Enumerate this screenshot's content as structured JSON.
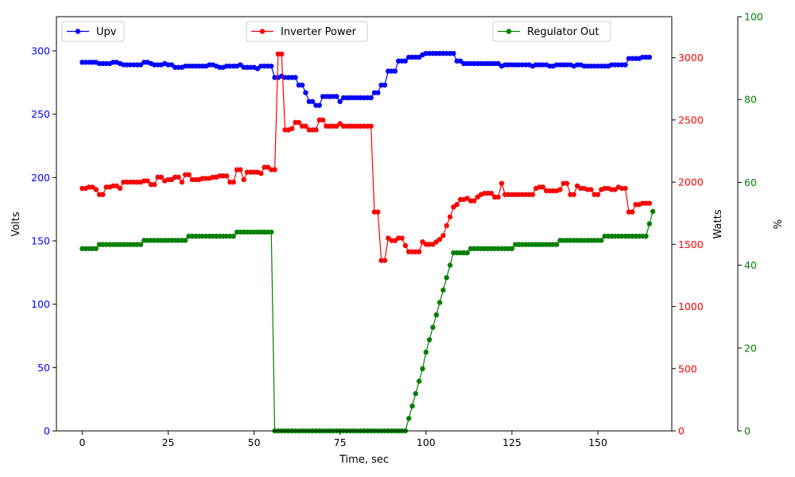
{
  "chart_data": {
    "type": "line",
    "xlabel": "Time, sec",
    "xlim": [
      -7.5,
      171.5
    ],
    "xticks": [
      0,
      25,
      50,
      75,
      100,
      125,
      150
    ],
    "axes": {
      "left": {
        "label": "Volts",
        "color": "#0000ff",
        "ylim": [
          0,
          327
        ],
        "ticks": [
          0,
          50,
          100,
          150,
          200,
          250,
          300
        ]
      },
      "right1": {
        "label": "Watts",
        "color": "#ff0000",
        "ylim": [
          0,
          3330
        ],
        "ticks": [
          0,
          500,
          1000,
          1500,
          2000,
          2500,
          3000
        ]
      },
      "right2": {
        "label": "%",
        "color": "#008000",
        "ylim": [
          0,
          100
        ],
        "ticks": [
          0,
          20,
          40,
          60,
          80,
          100
        ]
      }
    },
    "x_start": 0,
    "x_step": 1,
    "series": [
      {
        "name": "Upv",
        "axis": "left",
        "color": "#0000ff",
        "values": [
          291,
          291,
          291,
          291,
          291,
          290,
          290,
          290,
          290,
          291,
          291,
          290,
          289,
          289,
          289,
          289,
          289,
          289,
          291,
          291,
          290,
          289,
          289,
          289,
          290,
          289,
          289,
          287,
          287,
          287,
          288,
          288,
          288,
          288,
          288,
          288,
          288,
          289,
          289,
          288,
          287,
          287,
          288,
          288,
          288,
          288,
          289,
          287,
          287,
          287,
          287,
          286,
          288,
          288,
          288,
          288,
          279,
          279,
          280,
          279,
          279,
          279,
          279,
          273,
          273,
          267,
          260,
          260,
          257,
          257,
          264,
          264,
          264,
          264,
          264,
          260,
          263,
          263,
          263,
          263,
          263,
          263,
          263,
          263,
          263,
          267,
          267,
          273,
          273,
          284,
          284,
          284,
          292,
          292,
          292,
          295,
          295,
          295,
          295,
          297,
          298,
          298,
          298,
          298,
          298,
          298,
          298,
          298,
          298,
          292,
          292,
          290,
          290,
          290,
          290,
          290,
          290,
          290,
          290,
          290,
          290,
          290,
          288,
          289,
          289,
          289,
          289,
          289,
          289,
          289,
          289,
          288,
          289,
          289,
          289,
          289,
          288,
          288,
          289,
          289,
          289,
          289,
          289,
          288,
          289,
          289,
          288,
          288,
          288,
          288,
          288,
          288,
          288,
          288,
          289,
          289,
          289,
          289,
          289,
          294,
          294,
          294,
          294,
          295,
          295,
          295
        ]
      },
      {
        "name": "Inverter Power",
        "axis": "right1",
        "color": "#ff0000",
        "values": [
          1950,
          1950,
          1960,
          1960,
          1940,
          1900,
          1900,
          1960,
          1960,
          1970,
          1970,
          1950,
          2000,
          2000,
          2000,
          2000,
          2000,
          2000,
          2010,
          2010,
          1980,
          1980,
          2040,
          2040,
          2010,
          2020,
          2020,
          2040,
          2040,
          2000,
          2060,
          2060,
          2020,
          2020,
          2020,
          2030,
          2030,
          2030,
          2040,
          2040,
          2050,
          2050,
          2050,
          2000,
          2000,
          2100,
          2100,
          2020,
          2080,
          2080,
          2080,
          2080,
          2070,
          2120,
          2120,
          2100,
          2100,
          3030,
          3030,
          2420,
          2420,
          2430,
          2480,
          2480,
          2450,
          2450,
          2420,
          2420,
          2420,
          2500,
          2500,
          2450,
          2450,
          2450,
          2450,
          2470,
          2450,
          2450,
          2450,
          2450,
          2450,
          2450,
          2450,
          2450,
          2450,
          1760,
          1760,
          1370,
          1370,
          1550,
          1530,
          1530,
          1550,
          1550,
          1490,
          1440,
          1440,
          1440,
          1440,
          1520,
          1500,
          1500,
          1500,
          1520,
          1540,
          1570,
          1650,
          1720,
          1800,
          1820,
          1860,
          1860,
          1870,
          1850,
          1850,
          1880,
          1900,
          1910,
          1910,
          1910,
          1880,
          1880,
          1990,
          1900,
          1900,
          1900,
          1900,
          1900,
          1900,
          1900,
          1900,
          1900,
          1950,
          1960,
          1960,
          1930,
          1930,
          1930,
          1930,
          1940,
          1990,
          1990,
          1900,
          1900,
          1970,
          1950,
          1950,
          1940,
          1940,
          1900,
          1900,
          1940,
          1950,
          1950,
          1940,
          1940,
          1960,
          1950,
          1950,
          1760,
          1760,
          1820,
          1820,
          1830,
          1830,
          1830
        ]
      },
      {
        "name": "Regulator Out",
        "axis": "right2",
        "color": "#008000",
        "values": [
          44,
          44,
          44,
          44,
          44,
          45,
          45,
          45,
          45,
          45,
          45,
          45,
          45,
          45,
          45,
          45,
          45,
          45,
          46,
          46,
          46,
          46,
          46,
          46,
          46,
          46,
          46,
          46,
          46,
          46,
          46,
          47,
          47,
          47,
          47,
          47,
          47,
          47,
          47,
          47,
          47,
          47,
          47,
          47,
          47,
          48,
          48,
          48,
          48,
          48,
          48,
          48,
          48,
          48,
          48,
          48,
          0,
          0,
          0,
          0,
          0,
          0,
          0,
          0,
          0,
          0,
          0,
          0,
          0,
          0,
          0,
          0,
          0,
          0,
          0,
          0,
          0,
          0,
          0,
          0,
          0,
          0,
          0,
          0,
          0,
          0,
          0,
          0,
          0,
          0,
          0,
          0,
          0,
          0,
          0,
          3,
          6,
          9,
          12,
          15,
          19,
          22,
          25,
          28,
          31,
          34,
          37,
          40,
          43,
          43,
          43,
          43,
          43,
          44,
          44,
          44,
          44,
          44,
          44,
          44,
          44,
          44,
          44,
          44,
          44,
          44,
          45,
          45,
          45,
          45,
          45,
          45,
          45,
          45,
          45,
          45,
          45,
          45,
          45,
          46,
          46,
          46,
          46,
          46,
          46,
          46,
          46,
          46,
          46,
          46,
          46,
          46,
          47,
          47,
          47,
          47,
          47,
          47,
          47,
          47,
          47,
          47,
          47,
          47,
          47,
          50,
          53
        ]
      }
    ],
    "legend": [
      {
        "name": "Upv",
        "position": "upper-left"
      },
      {
        "name": "Inverter Power",
        "position": "upper-center"
      },
      {
        "name": "Regulator Out",
        "position": "upper-right"
      }
    ],
    "grid": false
  }
}
